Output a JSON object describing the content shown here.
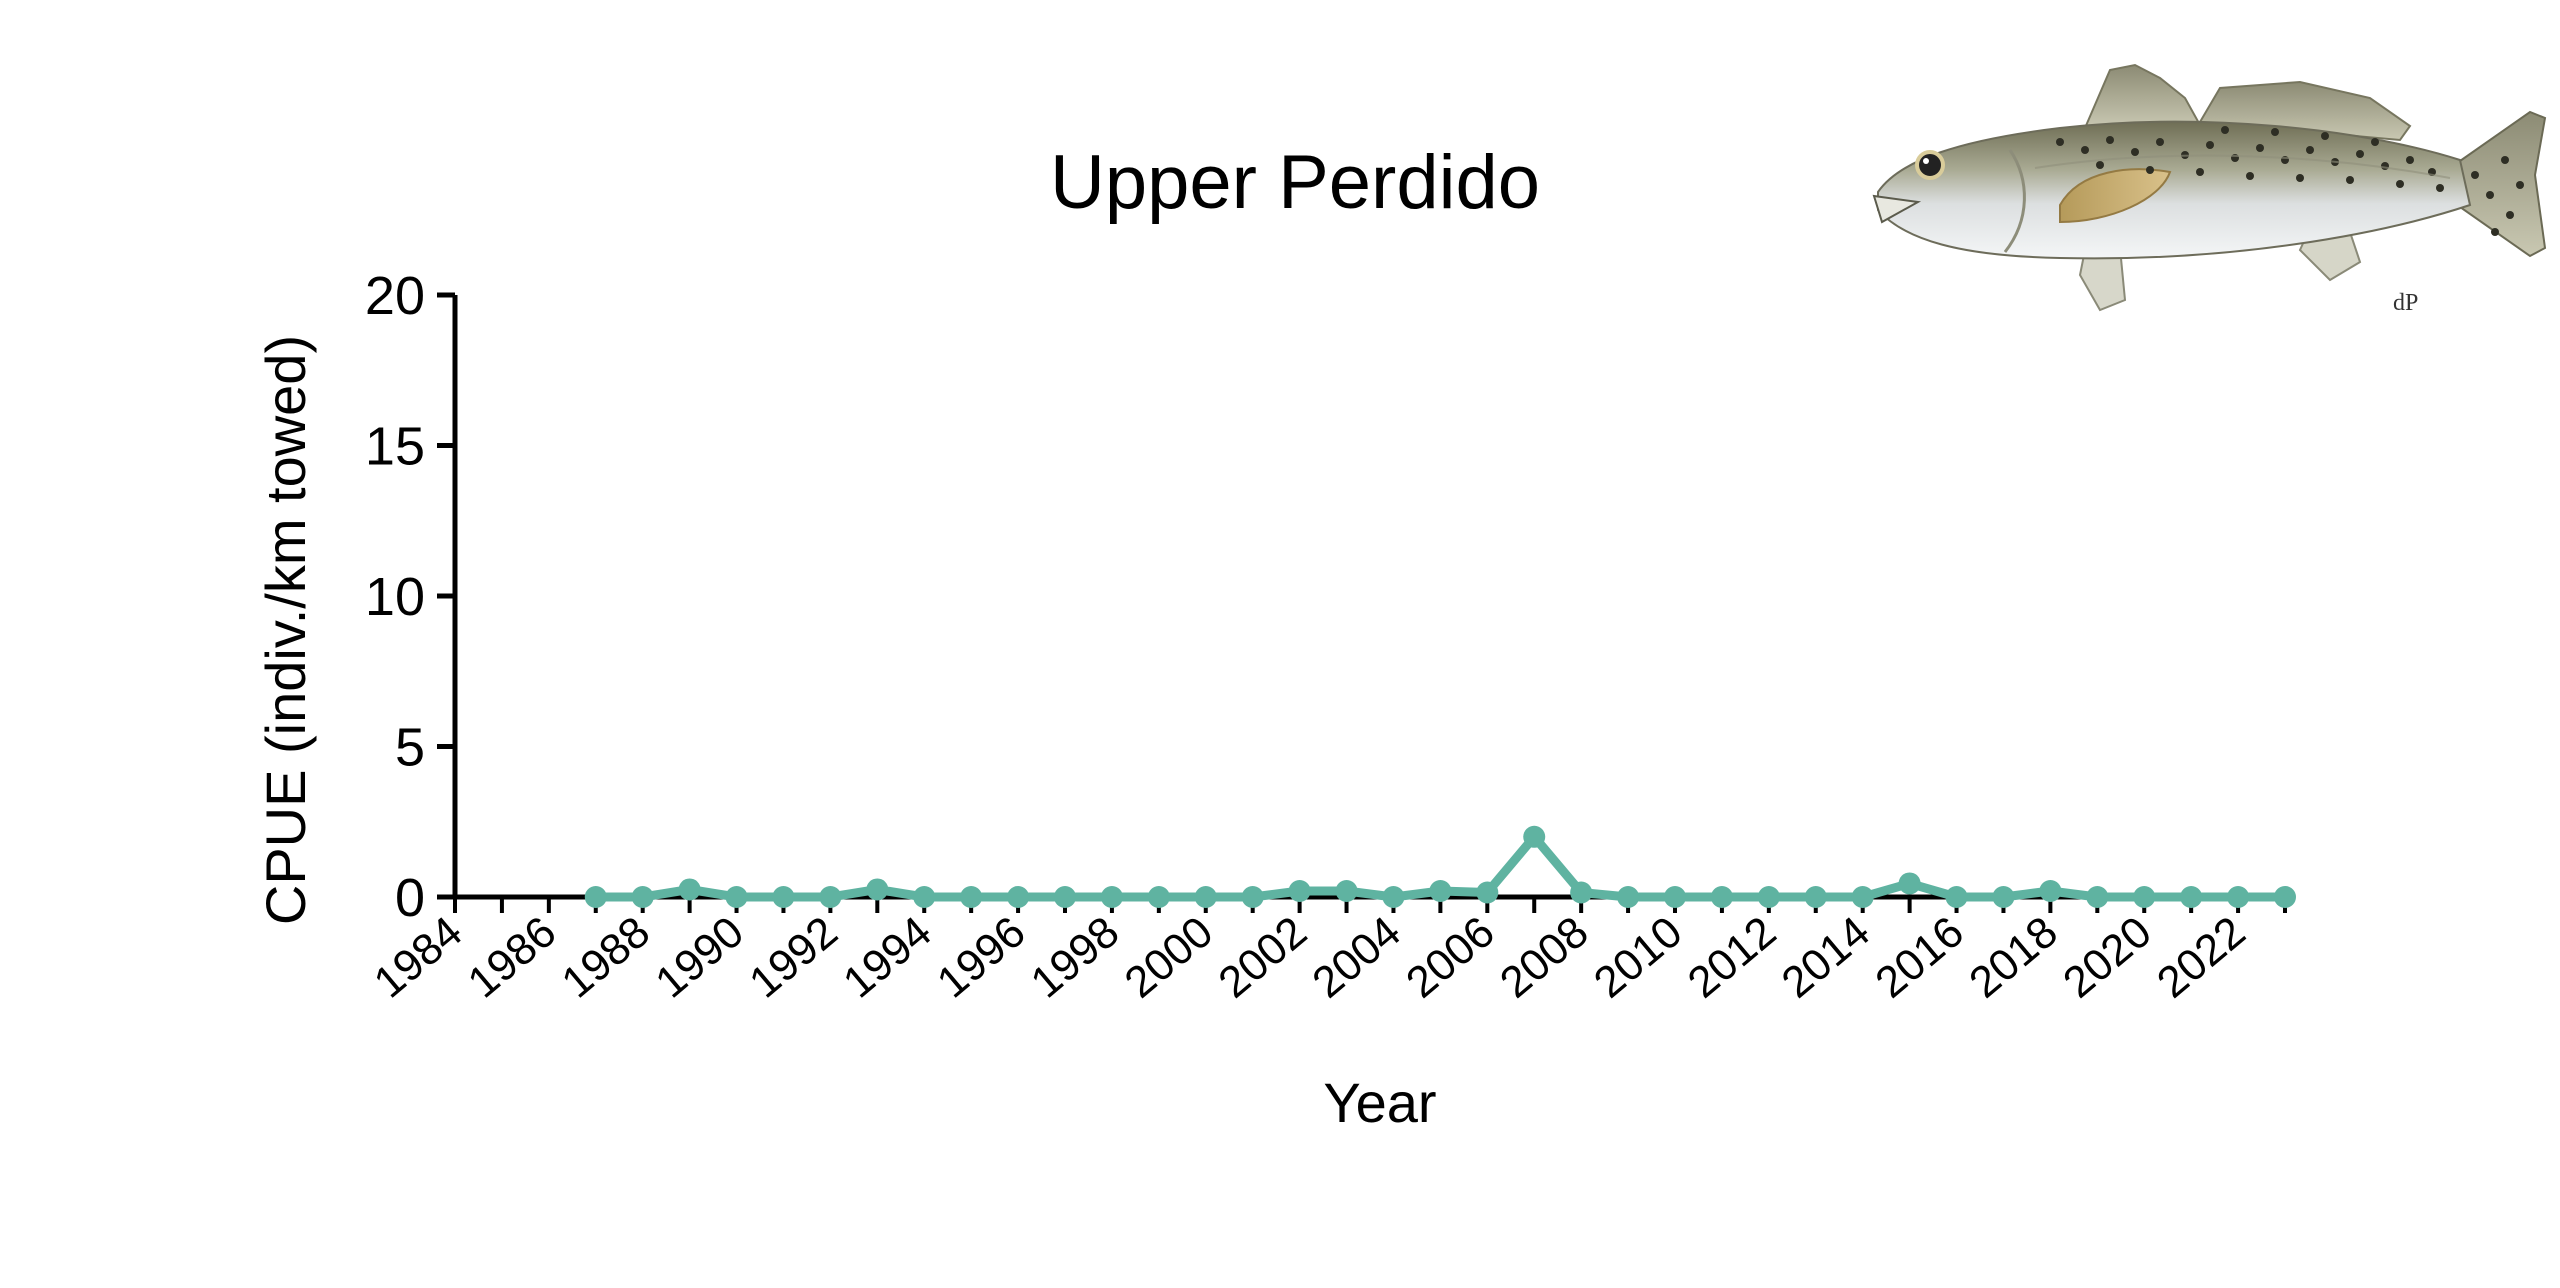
{
  "chart_data": {
    "type": "line",
    "title": "Upper Perdido",
    "xlabel": "Year",
    "ylabel": "CPUE (indiv./km towed)",
    "ylim": [
      0,
      20
    ],
    "yticks": [
      0,
      5,
      10,
      15,
      20
    ],
    "xlim": [
      1984,
      2023
    ],
    "xticks": [
      1984,
      1986,
      1988,
      1990,
      1992,
      1994,
      1996,
      1998,
      2000,
      2002,
      2004,
      2006,
      2008,
      2010,
      2012,
      2014,
      2016,
      2018,
      2020,
      2022
    ],
    "grid": false,
    "legend": "none",
    "series": [
      {
        "color": "#5fb3a1",
        "x": [
          1987,
          1988,
          1989,
          1990,
          1991,
          1992,
          1993,
          1994,
          1995,
          1996,
          1997,
          1998,
          1999,
          2000,
          2001,
          2002,
          2003,
          2004,
          2005,
          2006,
          2007,
          2008,
          2009,
          2010,
          2011,
          2012,
          2013,
          2014,
          2015,
          2016,
          2017,
          2018,
          2019,
          2020,
          2021,
          2022,
          2023
        ],
        "values": [
          0,
          0,
          0.25,
          0,
          0,
          0,
          0.25,
          0,
          0,
          0,
          0,
          0,
          0,
          0,
          0,
          0.2,
          0.2,
          0,
          0.2,
          0.15,
          2.0,
          0.15,
          0,
          0,
          0,
          0,
          0,
          0,
          0.45,
          0,
          0,
          0.2,
          0,
          0,
          0,
          0,
          0
        ]
      }
    ]
  },
  "illustration": {
    "subject": "spotted-seatrout-illustration",
    "signature": "dP"
  }
}
